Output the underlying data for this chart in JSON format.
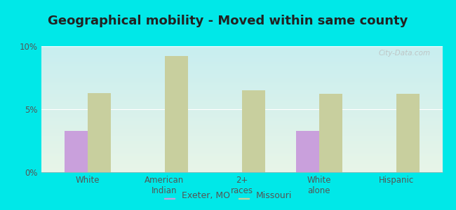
{
  "title": "Geographical mobility - Moved within same county",
  "categories": [
    "White",
    "American\nIndian",
    "2+\nraces",
    "White\nalone",
    "Hispanic"
  ],
  "exeter_values": [
    3.3,
    0,
    0,
    3.3,
    0
  ],
  "missouri_values": [
    6.3,
    9.2,
    6.5,
    6.2,
    6.2
  ],
  "exeter_color": "#c9a0dc",
  "missouri_color": "#c8cf9e",
  "plot_bg_top": "#c8eef0",
  "plot_bg_bottom": "#e8f5e8",
  "ylim": [
    0,
    10
  ],
  "yticks": [
    0,
    5,
    10
  ],
  "ytick_labels": [
    "0%",
    "5%",
    "10%"
  ],
  "bar_width": 0.3,
  "legend_labels": [
    "Exeter, MO",
    "Missouri"
  ],
  "title_fontsize": 13,
  "tick_fontsize": 8.5,
  "legend_fontsize": 9,
  "outer_bg": "#00e8e8",
  "text_color": "#555555",
  "title_color": "#222222"
}
